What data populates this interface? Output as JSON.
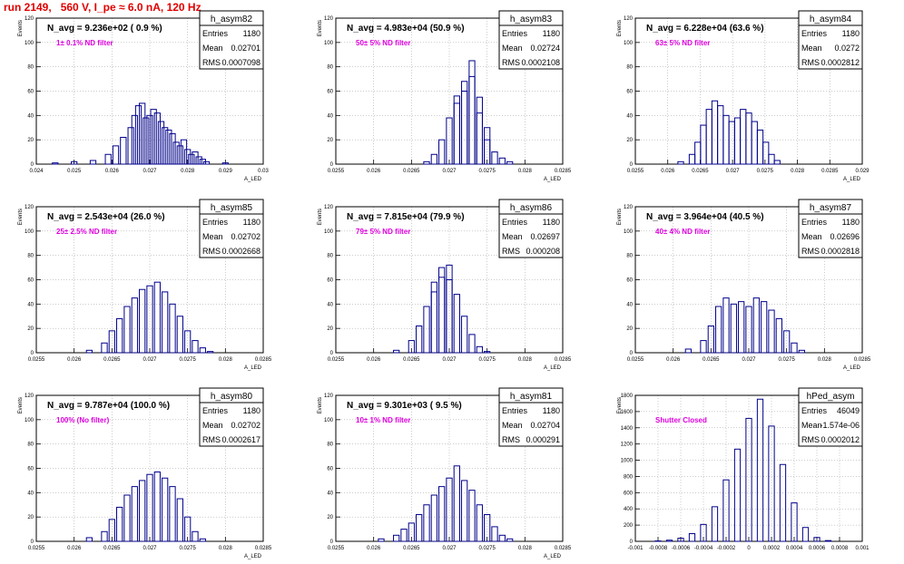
{
  "page_title": "run 2149,   560 V, I_pe ≈ 6.0 nA, 120 Hz",
  "chart_data": [
    {
      "type": "bar",
      "panel_title": "h_asym82",
      "n_avg_text": "N_avg = 9.236e+02 ( 0.9 %)",
      "filter_text": "1± 0.1% ND filter",
      "stats": [
        [
          "Entries",
          "1180"
        ],
        [
          "Mean",
          "0.02701"
        ],
        [
          "RMS",
          "0.0007098"
        ]
      ],
      "ylabel": "Events",
      "xlabel": "A_LED",
      "xlim": [
        0.024,
        0.03
      ],
      "ylim": [
        0,
        120
      ],
      "xticks": [
        "0.024",
        "0.025",
        "0.026",
        "0.027",
        "0.028",
        "0.029",
        "0.03"
      ],
      "yticks": [
        "0",
        "20",
        "40",
        "60",
        "80",
        "100",
        "120"
      ],
      "x": [
        0.0245,
        0.025,
        0.0255,
        0.0259,
        0.0261,
        0.0263,
        0.0265,
        0.0266,
        0.0267,
        0.0268,
        0.0269,
        0.027,
        0.0271,
        0.0272,
        0.0273,
        0.0274,
        0.0275,
        0.0276,
        0.0277,
        0.0278,
        0.0279,
        0.028,
        0.0281,
        0.0282,
        0.0283,
        0.0284,
        0.0285,
        0.029
      ],
      "values": [
        1,
        2,
        3,
        8,
        15,
        22,
        30,
        40,
        48,
        50,
        38,
        40,
        45,
        42,
        35,
        30,
        28,
        25,
        18,
        15,
        20,
        12,
        8,
        10,
        6,
        4,
        2,
        1
      ]
    },
    {
      "type": "bar",
      "panel_title": "h_asym83",
      "n_avg_text": "N_avg = 4.983e+04 (50.9 %)",
      "filter_text": "50± 5% ND filter",
      "stats": [
        [
          "Entries",
          "1180"
        ],
        [
          "Mean",
          "0.02724"
        ],
        [
          "RMS",
          "0.0002108"
        ]
      ],
      "ylabel": "Events",
      "xlabel": "A_LED",
      "xlim": [
        0.0255,
        0.0285
      ],
      "ylim": [
        0,
        120
      ],
      "xticks": [
        "0.0255",
        "0.026",
        "0.0265",
        "0.027",
        "0.0275",
        "0.028",
        "0.0285"
      ],
      "yticks": [
        "0",
        "20",
        "40",
        "60",
        "80",
        "100",
        "120"
      ],
      "x": [
        0.0267,
        0.0268,
        0.0269,
        0.027,
        0.0271,
        0.0271,
        0.0272,
        0.0272,
        0.0273,
        0.0273,
        0.0274,
        0.0274,
        0.0275,
        0.0275,
        0.0276,
        0.0277,
        0.0278
      ],
      "values": [
        2,
        8,
        20,
        38,
        50,
        56,
        60,
        68,
        85,
        72,
        55,
        42,
        30,
        20,
        10,
        5,
        2
      ]
    },
    {
      "type": "bar",
      "panel_title": "h_asym84",
      "n_avg_text": "N_avg = 6.228e+04 (63.6 %)",
      "filter_text": "63± 5% ND filter",
      "stats": [
        [
          "Entries",
          "1180"
        ],
        [
          "Mean",
          "0.0272"
        ],
        [
          "RMS",
          "0.0002812"
        ]
      ],
      "ylabel": "Events",
      "xlabel": "A_LED",
      "xlim": [
        0.0255,
        0.0295
      ],
      "ylim": [
        0,
        120
      ],
      "xticks": [
        "0.0255",
        "0.026",
        "0.0265",
        "0.027",
        "0.0275",
        "0.028",
        "0.0285",
        "0.029"
      ],
      "yticks": [
        "0",
        "20",
        "40",
        "60",
        "80",
        "100",
        "120"
      ],
      "x": [
        0.0263,
        0.0265,
        0.0266,
        0.0267,
        0.0268,
        0.0269,
        0.027,
        0.0271,
        0.0272,
        0.0273,
        0.0274,
        0.0275,
        0.0276,
        0.0277,
        0.0278,
        0.0279,
        0.028
      ],
      "values": [
        2,
        8,
        18,
        32,
        45,
        52,
        48,
        40,
        35,
        38,
        45,
        42,
        35,
        28,
        18,
        8,
        3
      ]
    },
    {
      "type": "bar",
      "panel_title": "h_asym85",
      "n_avg_text": "N_avg = 2.543e+04 (26.0 %)",
      "filter_text": "25± 2.5% ND filter",
      "stats": [
        [
          "Entries",
          "1180"
        ],
        [
          "Mean",
          "0.02702"
        ],
        [
          "RMS",
          "0.0002668"
        ]
      ],
      "ylabel": "Events",
      "xlabel": "A_LED",
      "xlim": [
        0.0255,
        0.0285
      ],
      "ylim": [
        0,
        120
      ],
      "xticks": [
        "0.0255",
        "0.026",
        "0.0265",
        "0.027",
        "0.0275",
        "0.028",
        "0.0285"
      ],
      "yticks": [
        "0",
        "20",
        "40",
        "60",
        "80",
        "100",
        "120"
      ],
      "x": [
        0.0262,
        0.0264,
        0.0265,
        0.0266,
        0.0267,
        0.0268,
        0.0269,
        0.027,
        0.0271,
        0.0272,
        0.0273,
        0.0274,
        0.0275,
        0.0276,
        0.0277,
        0.0278
      ],
      "values": [
        2,
        8,
        18,
        28,
        38,
        45,
        52,
        55,
        58,
        50,
        40,
        30,
        18,
        10,
        4,
        1
      ]
    },
    {
      "type": "bar",
      "panel_title": "h_asym86",
      "n_avg_text": "N_avg = 7.815e+04 (79.9 %)",
      "filter_text": "79± 5% ND filter",
      "stats": [
        [
          "Entries",
          "1180"
        ],
        [
          "Mean",
          "0.02697"
        ],
        [
          "RMS",
          "0.000208"
        ]
      ],
      "ylabel": "Events",
      "xlabel": "A_LED",
      "xlim": [
        0.0255,
        0.0285
      ],
      "ylim": [
        0,
        120
      ],
      "xticks": [
        "0.0255",
        "0.026",
        "0.0265",
        "0.027",
        "0.0275",
        "0.028",
        "0.0285"
      ],
      "yticks": [
        "0",
        "20",
        "40",
        "60",
        "80",
        "100",
        "120"
      ],
      "x": [
        0.0263,
        0.0265,
        0.0266,
        0.0267,
        0.0268,
        0.0268,
        0.0269,
        0.0269,
        0.027,
        0.027,
        0.0271,
        0.0272,
        0.0273,
        0.0274,
        0.0275
      ],
      "values": [
        2,
        10,
        22,
        38,
        50,
        58,
        62,
        70,
        72,
        60,
        48,
        30,
        15,
        5,
        1
      ]
    },
    {
      "type": "bar",
      "panel_title": "h_asym87",
      "n_avg_text": "N_avg = 3.964e+04 (40.5 %)",
      "filter_text": "40± 4% ND filter",
      "stats": [
        [
          "Entries",
          "1180"
        ],
        [
          "Mean",
          "0.02696"
        ],
        [
          "RMS",
          "0.0002818"
        ]
      ],
      "ylabel": "Events",
      "xlabel": "A_LED",
      "xlim": [
        0.0255,
        0.0285
      ],
      "ylim": [
        0,
        120
      ],
      "xticks": [
        "0.0255",
        "0.026",
        "0.0265",
        "0.027",
        "0.0275",
        "0.028",
        "0.0285"
      ],
      "yticks": [
        "0",
        "20",
        "40",
        "60",
        "80",
        "100",
        "120"
      ],
      "x": [
        0.0262,
        0.0264,
        0.0265,
        0.0266,
        0.0267,
        0.0268,
        0.0269,
        0.027,
        0.0271,
        0.0272,
        0.0273,
        0.0274,
        0.0275,
        0.0276,
        0.0277
      ],
      "values": [
        3,
        10,
        22,
        38,
        45,
        40,
        42,
        38,
        45,
        42,
        35,
        28,
        18,
        8,
        2
      ]
    },
    {
      "type": "bar",
      "panel_title": "h_asym80",
      "n_avg_text": "N_avg = 9.787e+04 (100.0 %)",
      "filter_text": "100% (No filter)",
      "stats": [
        [
          "Entries",
          "1180"
        ],
        [
          "Mean",
          "0.02702"
        ],
        [
          "RMS",
          "0.0002617"
        ]
      ],
      "ylabel": "Events",
      "xlabel": "A_LED",
      "xlim": [
        0.0255,
        0.0285
      ],
      "ylim": [
        0,
        120
      ],
      "xticks": [
        "0.0255",
        "0.026",
        "0.0265",
        "0.027",
        "0.0275",
        "0.028",
        "0.0285"
      ],
      "yticks": [
        "0",
        "20",
        "40",
        "60",
        "80",
        "100",
        "120"
      ],
      "x": [
        0.0262,
        0.0264,
        0.0265,
        0.0266,
        0.0267,
        0.0268,
        0.0269,
        0.027,
        0.0271,
        0.0272,
        0.0273,
        0.0274,
        0.0275,
        0.0276,
        0.0277
      ],
      "values": [
        3,
        8,
        18,
        28,
        38,
        45,
        50,
        55,
        57,
        52,
        45,
        35,
        20,
        8,
        2
      ]
    },
    {
      "type": "bar",
      "panel_title": "h_asym81",
      "n_avg_text": "N_avg = 9.301e+03 ( 9.5 %)",
      "filter_text": "10± 1% ND filter",
      "stats": [
        [
          "Entries",
          "1180"
        ],
        [
          "Mean",
          "0.02704"
        ],
        [
          "RMS",
          "0.000291"
        ]
      ],
      "ylabel": "Events",
      "xlabel": "A_LED",
      "xlim": [
        0.0255,
        0.0285
      ],
      "ylim": [
        0,
        120
      ],
      "xticks": [
        "0.0255",
        "0.026",
        "0.0265",
        "0.027",
        "0.0275",
        "0.028",
        "0.0285"
      ],
      "yticks": [
        "0",
        "20",
        "40",
        "60",
        "80",
        "100",
        "120"
      ],
      "x": [
        0.0261,
        0.0263,
        0.0264,
        0.0265,
        0.0266,
        0.0267,
        0.0268,
        0.0269,
        0.027,
        0.0271,
        0.0272,
        0.0273,
        0.0274,
        0.0275,
        0.0276,
        0.0277,
        0.0278
      ],
      "values": [
        2,
        5,
        10,
        15,
        22,
        30,
        38,
        45,
        52,
        62,
        50,
        42,
        30,
        22,
        12,
        5,
        2
      ]
    },
    {
      "type": "bar",
      "panel_title": "hPed_asym",
      "n_avg_text": "",
      "filter_text": "Shutter Closed",
      "stats": [
        [
          "Entries",
          "46049"
        ],
        [
          "Mean",
          "-1.574e-06"
        ],
        [
          "RMS",
          "0.0002012"
        ]
      ],
      "ylabel": "Events",
      "xlabel": "",
      "xlim": [
        -0.001,
        0.001
      ],
      "ylim": [
        0,
        1900
      ],
      "xticks": [
        "-0.001",
        "-0.0008",
        "-0.0006",
        "-0.0004",
        "-0.0002",
        "0",
        "0.0002",
        "0.0004",
        "0.0006",
        "0.0008",
        "0.001"
      ],
      "yticks": [
        "0",
        "200",
        "400",
        "600",
        "800",
        "1000",
        "1200",
        "1400",
        "1600",
        "1800"
      ],
      "x": [
        -0.0008,
        -0.0007,
        -0.0006,
        -0.0005,
        -0.0004,
        -0.0003,
        -0.0002,
        -0.0001,
        0.0,
        0.0001,
        0.0002,
        0.0003,
        0.0004,
        0.0005,
        0.0006,
        0.0007
      ],
      "values": [
        5,
        15,
        40,
        100,
        220,
        450,
        800,
        1200,
        1600,
        1850,
        1500,
        1000,
        500,
        180,
        50,
        10
      ]
    }
  ]
}
